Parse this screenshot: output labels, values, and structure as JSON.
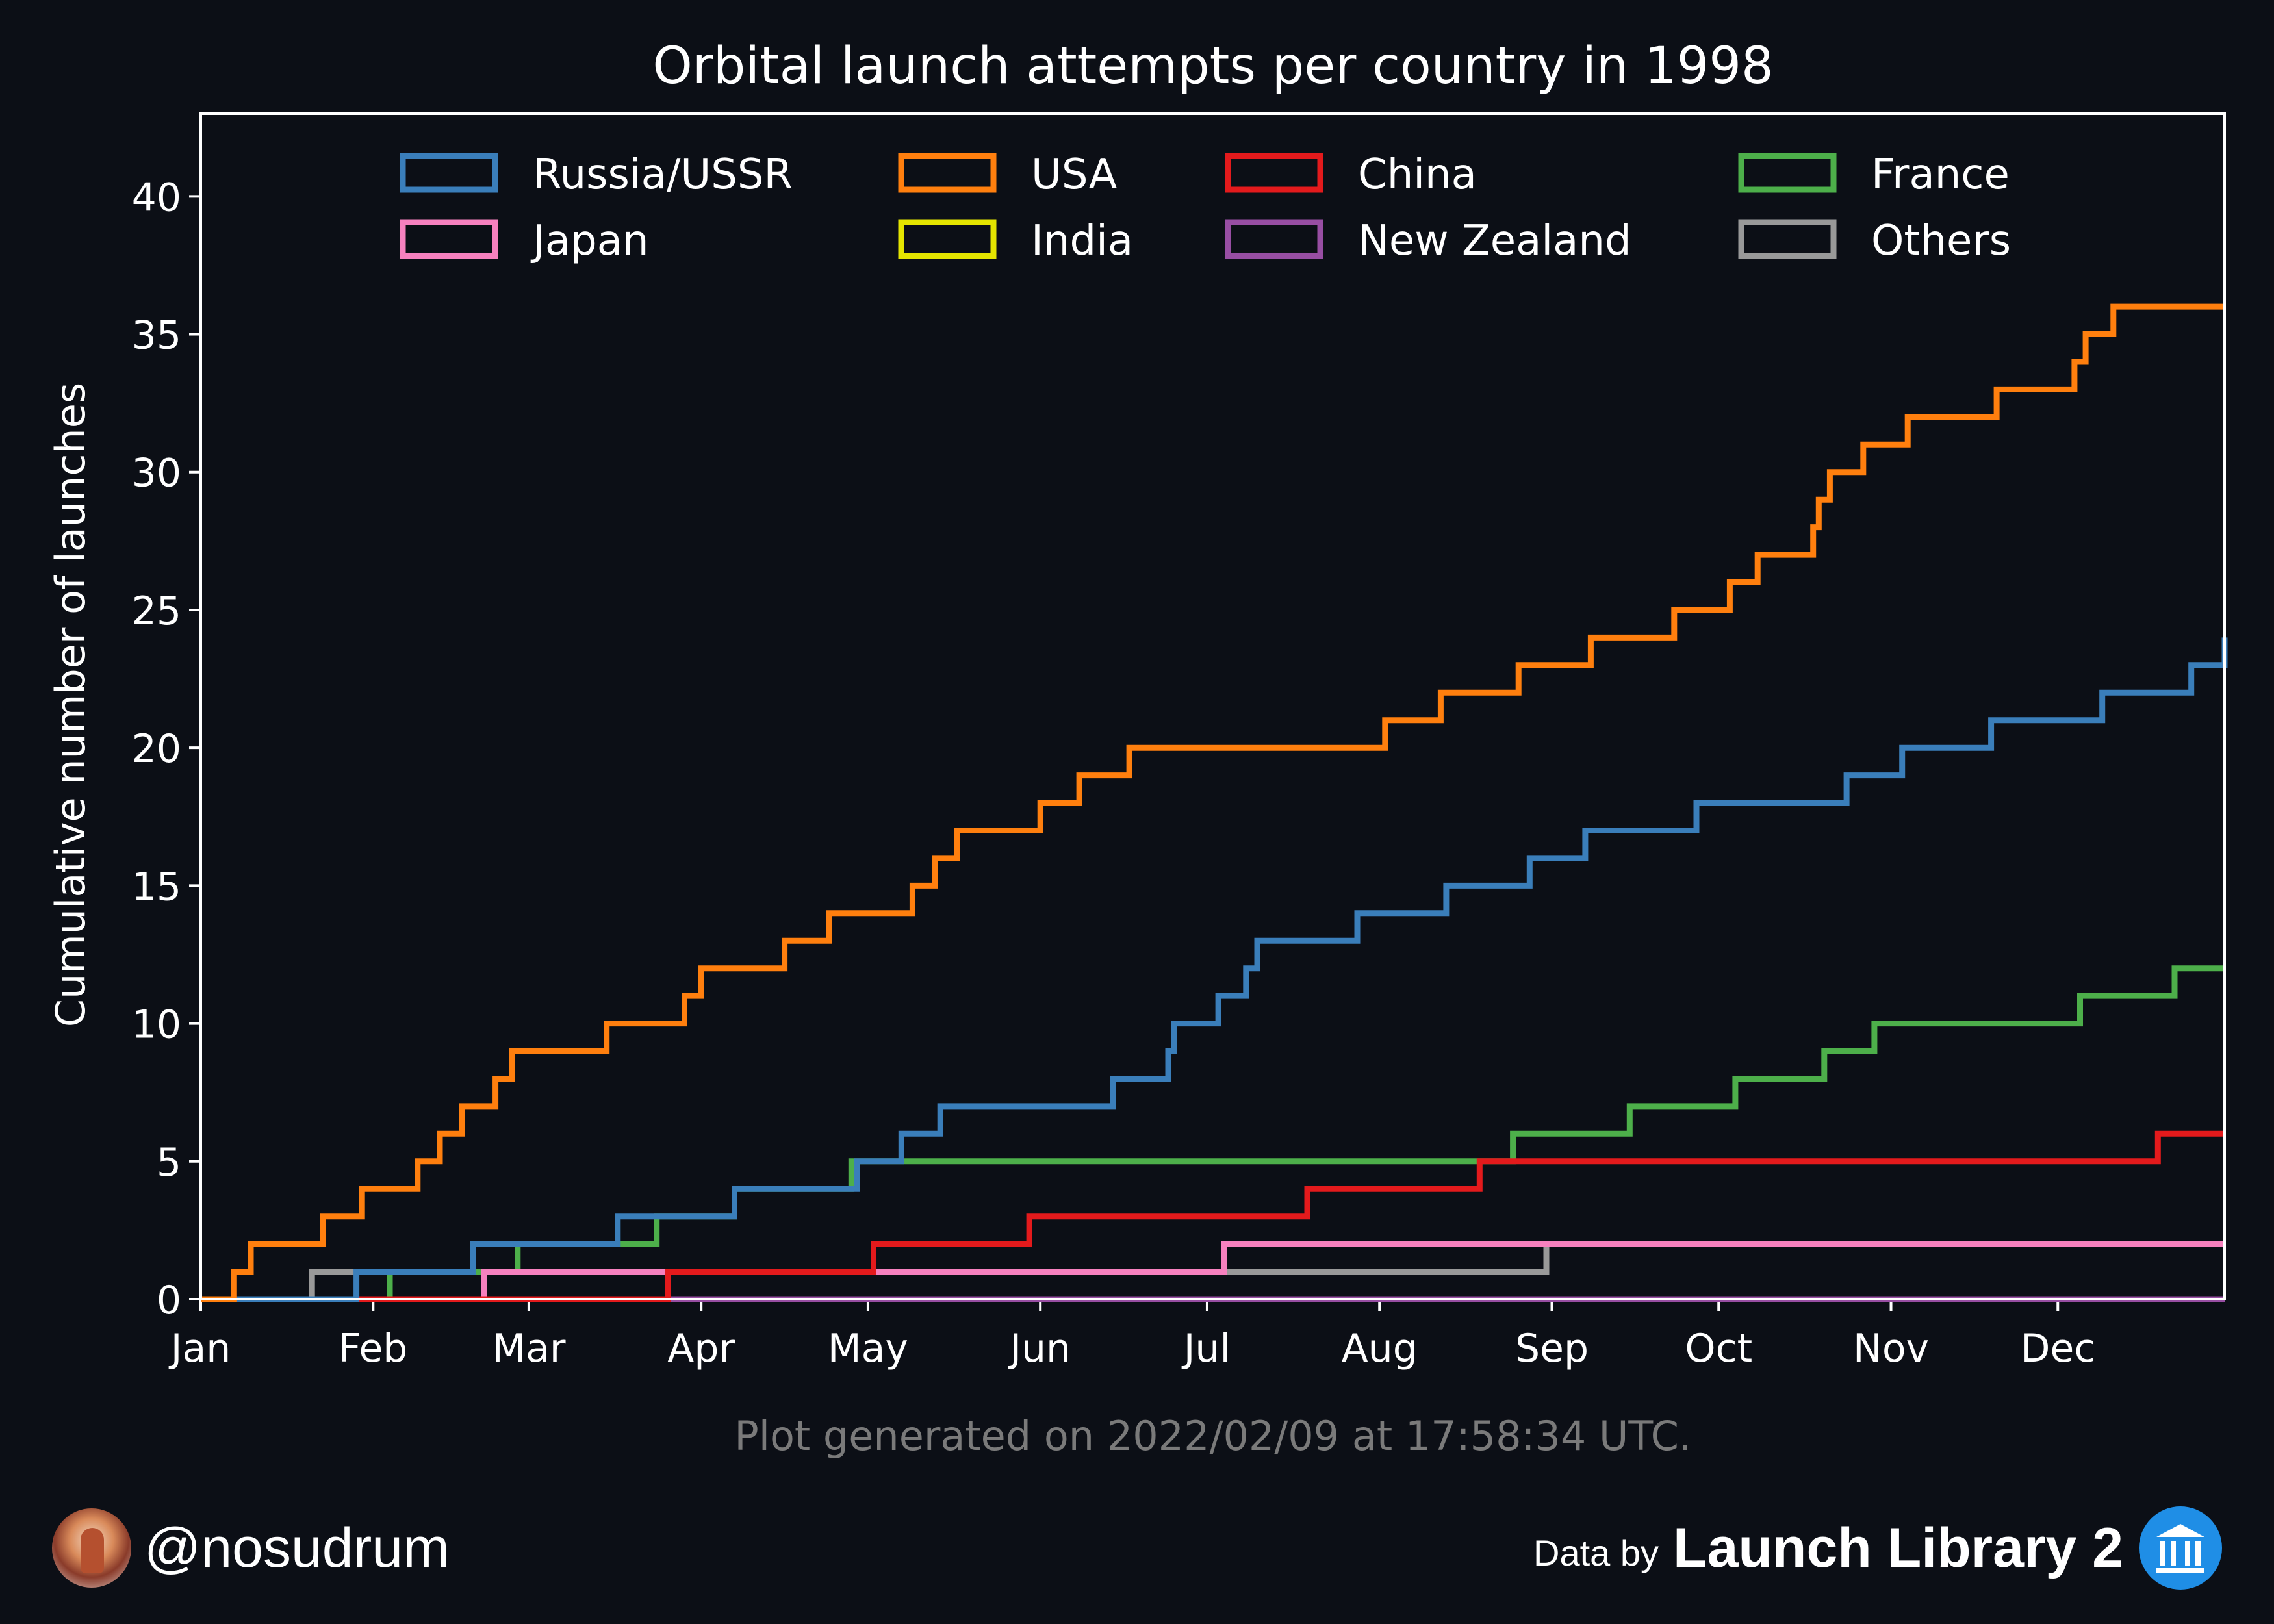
{
  "chart_data": {
    "type": "line",
    "step": true,
    "title": "Orbital launch attempts per country in 1998",
    "ylabel": "Cumulative number of launches",
    "xlabel": "",
    "ylim": [
      0,
      43
    ],
    "xlim": [
      "1998-01-01",
      "1998-12-31"
    ],
    "yticks": [
      0,
      5,
      10,
      15,
      20,
      25,
      30,
      35,
      40
    ],
    "xticks": [
      {
        "date": "1998-01-01",
        "label": "Jan"
      },
      {
        "date": "1998-02-01",
        "label": "Feb"
      },
      {
        "date": "1998-03-01",
        "label": "Mar"
      },
      {
        "date": "1998-04-01",
        "label": "Apr"
      },
      {
        "date": "1998-05-01",
        "label": "May"
      },
      {
        "date": "1998-06-01",
        "label": "Jun"
      },
      {
        "date": "1998-07-01",
        "label": "Jul"
      },
      {
        "date": "1998-08-01",
        "label": "Aug"
      },
      {
        "date": "1998-09-01",
        "label": "Sep"
      },
      {
        "date": "1998-10-01",
        "label": "Oct"
      },
      {
        "date": "1998-11-01",
        "label": "Nov"
      },
      {
        "date": "1998-12-01",
        "label": "Dec"
      }
    ],
    "legend_position": "top",
    "grid": false,
    "series": [
      {
        "name": "Russia/USSR",
        "color": "#3a7eba",
        "steps": [
          "1998-01-29",
          "1998-02-19",
          "1998-03-17",
          "1998-04-07",
          "1998-04-29",
          "1998-05-07",
          "1998-05-14",
          "1998-06-14",
          "1998-06-24",
          "1998-06-25",
          "1998-07-03",
          "1998-07-08",
          "1998-07-10",
          "1998-07-28",
          "1998-08-13",
          "1998-08-28",
          "1998-09-07",
          "1998-09-27",
          "1998-10-24",
          "1998-11-03",
          "1998-11-19",
          "1998-12-09",
          "1998-12-25",
          "1998-12-31"
        ]
      },
      {
        "name": "USA",
        "color": "#ff7f0e",
        "steps": [
          "1998-01-07",
          "1998-01-10",
          "1998-01-23",
          "1998-01-30",
          "1998-02-09",
          "1998-02-13",
          "1998-02-17",
          "1998-02-23",
          "1998-02-26",
          "1998-03-15",
          "1998-03-29",
          "1998-04-01",
          "1998-04-16",
          "1998-04-24",
          "1998-05-09",
          "1998-05-13",
          "1998-05-17",
          "1998-06-01",
          "1998-06-08",
          "1998-06-17",
          "1998-08-02",
          "1998-08-12",
          "1998-08-26",
          "1998-09-08",
          "1998-09-23",
          "1998-10-03",
          "1998-10-08",
          "1998-10-18",
          "1998-10-19",
          "1998-10-21",
          "1998-10-27",
          "1998-11-04",
          "1998-11-20",
          "1998-12-04",
          "1998-12-06",
          "1998-12-11"
        ]
      },
      {
        "name": "China",
        "color": "#e41a1c",
        "steps": [
          "1998-03-26",
          "1998-05-02",
          "1998-05-30",
          "1998-07-19",
          "1998-08-19",
          "1998-12-19"
        ]
      },
      {
        "name": "France",
        "color": "#4daf4a",
        "steps": [
          "1998-02-04",
          "1998-02-27",
          "1998-03-24",
          "1998-04-07",
          "1998-04-28",
          "1998-08-25",
          "1998-09-15",
          "1998-10-04",
          "1998-10-20",
          "1998-10-29",
          "1998-12-05",
          "1998-12-22"
        ]
      },
      {
        "name": "Japan",
        "color": "#f781bf",
        "steps": [
          "1998-02-21",
          "1998-07-04"
        ]
      },
      {
        "name": "India",
        "color": "#e5e500",
        "steps": []
      },
      {
        "name": "New Zealand",
        "color": "#984ea3",
        "steps": []
      },
      {
        "name": "Others",
        "color": "#999999",
        "steps": [
          "1998-01-21",
          "1998-08-31"
        ]
      }
    ]
  },
  "footer": {
    "generated": "Plot generated on 2022/02/09 at 17:58:34 UTC.",
    "handle": "@nosudrum",
    "data_by": "Data by",
    "source": "Launch Library 2"
  }
}
